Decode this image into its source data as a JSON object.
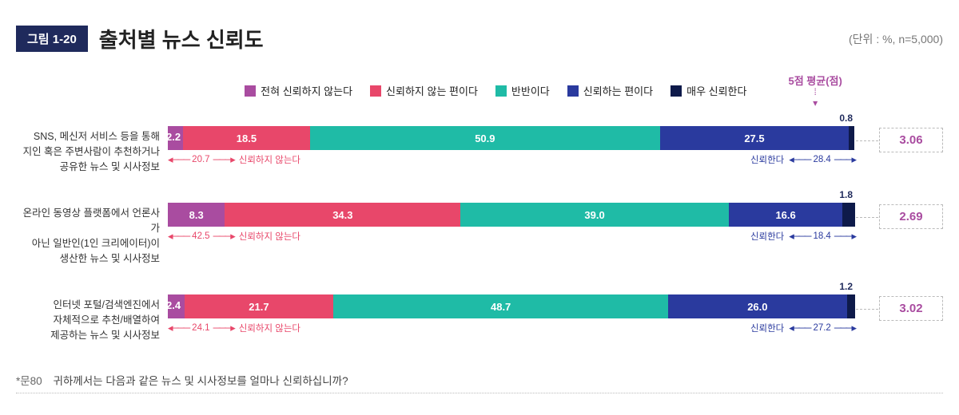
{
  "figure_badge": "그림 1-20",
  "title": "출처별 뉴스 신뢰도",
  "unit": "(단위 : %, n=5,000)",
  "avg_header": "5점 평균(점)",
  "legend": [
    {
      "label": "전혀 신뢰하지 않는다",
      "color": "#a94ca0"
    },
    {
      "label": "신뢰하지 않는 편이다",
      "color": "#e8476a"
    },
    {
      "label": "반반이다",
      "color": "#1fbba6"
    },
    {
      "label": "신뢰하는 편이다",
      "color": "#2a3a9e"
    },
    {
      "label": "매우 신뢰한다",
      "color": "#0e1a4a"
    }
  ],
  "neg_label": "신뢰하지 않는다",
  "pos_label": "신뢰한다",
  "rows": [
    {
      "label_l1": "SNS, 메신저 서비스 등을 통해",
      "label_l2": "지인 혹은 주변사람이 추천하거나",
      "label_l3": "공유한 뉴스 및 시사정보",
      "segs": [
        2.2,
        18.5,
        50.9,
        27.5,
        0.8
      ],
      "neg_sum": "20.7",
      "pos_sum": "28.4",
      "avg": "3.06"
    },
    {
      "label_l1": "온라인 동영상 플랫폼에서 언론사가",
      "label_l2": "아닌 일반인(1인 크리에이터)이",
      "label_l3": "생산한 뉴스 및 시사정보",
      "segs": [
        8.3,
        34.3,
        39.0,
        16.6,
        1.8
      ],
      "neg_sum": "42.5",
      "pos_sum": "18.4",
      "avg": "2.69"
    },
    {
      "label_l1": "인터넷 포털/검색엔진에서",
      "label_l2": "자체적으로 추천/배열하여",
      "label_l3": "제공하는 뉴스 및 시사정보",
      "segs": [
        2.4,
        21.7,
        48.7,
        26.0,
        1.2
      ],
      "neg_sum": "24.1",
      "pos_sum": "27.2",
      "avg": "3.02"
    }
  ],
  "footnote_q": "*문80",
  "footnote_text": "귀하께서는 다음과 같은 뉴스 및 시사정보를 얼마나 신뢰하십니까?"
}
